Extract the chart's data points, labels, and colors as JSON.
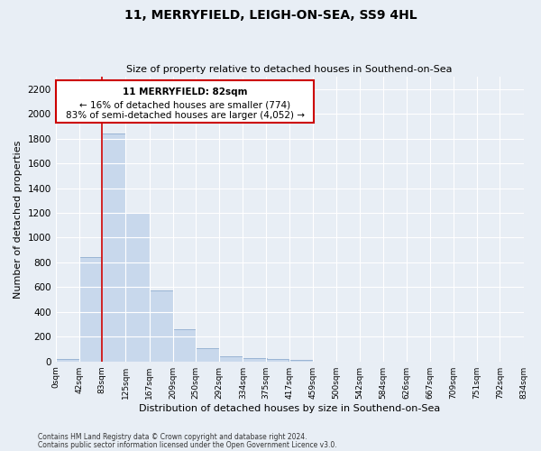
{
  "title1": "11, MERRYFIELD, LEIGH-ON-SEA, SS9 4HL",
  "title2": "Size of property relative to detached houses in Southend-on-Sea",
  "xlabel": "Distribution of detached houses by size in Southend-on-Sea",
  "ylabel": "Number of detached properties",
  "footnote1": "Contains HM Land Registry data © Crown copyright and database right 2024.",
  "footnote2": "Contains public sector information licensed under the Open Government Licence v3.0.",
  "annotation_line1": "11 MERRYFIELD: 82sqm",
  "annotation_line2": "← 16% of detached houses are smaller (774)",
  "annotation_line3": "83% of semi-detached houses are larger (4,052) →",
  "bar_left_edges": [
    0,
    42,
    83,
    125,
    167,
    209,
    250,
    292,
    334,
    375,
    417,
    459,
    500,
    542,
    584,
    626,
    667,
    709,
    751,
    792
  ],
  "bar_widths": [
    42,
    41,
    42,
    42,
    42,
    41,
    42,
    42,
    42,
    41,
    42,
    41,
    42,
    42,
    42,
    41,
    42,
    42,
    41,
    42
  ],
  "bar_heights": [
    20,
    840,
    1840,
    1200,
    575,
    260,
    110,
    40,
    30,
    20,
    15,
    0,
    0,
    0,
    0,
    0,
    0,
    0,
    0,
    0
  ],
  "bar_color": "#c8d8ec",
  "bar_edgecolor": "#9ab4d4",
  "red_line_x": 83,
  "ylim": [
    0,
    2300
  ],
  "yticks": [
    0,
    200,
    400,
    600,
    800,
    1000,
    1200,
    1400,
    1600,
    1800,
    2000,
    2200
  ],
  "xtick_labels": [
    "0sqm",
    "42sqm",
    "83sqm",
    "125sqm",
    "167sqm",
    "209sqm",
    "250sqm",
    "292sqm",
    "334sqm",
    "375sqm",
    "417sqm",
    "459sqm",
    "500sqm",
    "542sqm",
    "584sqm",
    "626sqm",
    "667sqm",
    "709sqm",
    "751sqm",
    "792sqm",
    "834sqm"
  ],
  "bg_color": "#e8eef5",
  "plot_bg_color": "#e8eef5",
  "grid_color": "#ffffff",
  "annotation_box_color": "#ffffff",
  "annotation_box_edgecolor": "#cc0000",
  "title1_fontsize": 10,
  "title2_fontsize": 8,
  "ylabel_fontsize": 8,
  "xlabel_fontsize": 8
}
